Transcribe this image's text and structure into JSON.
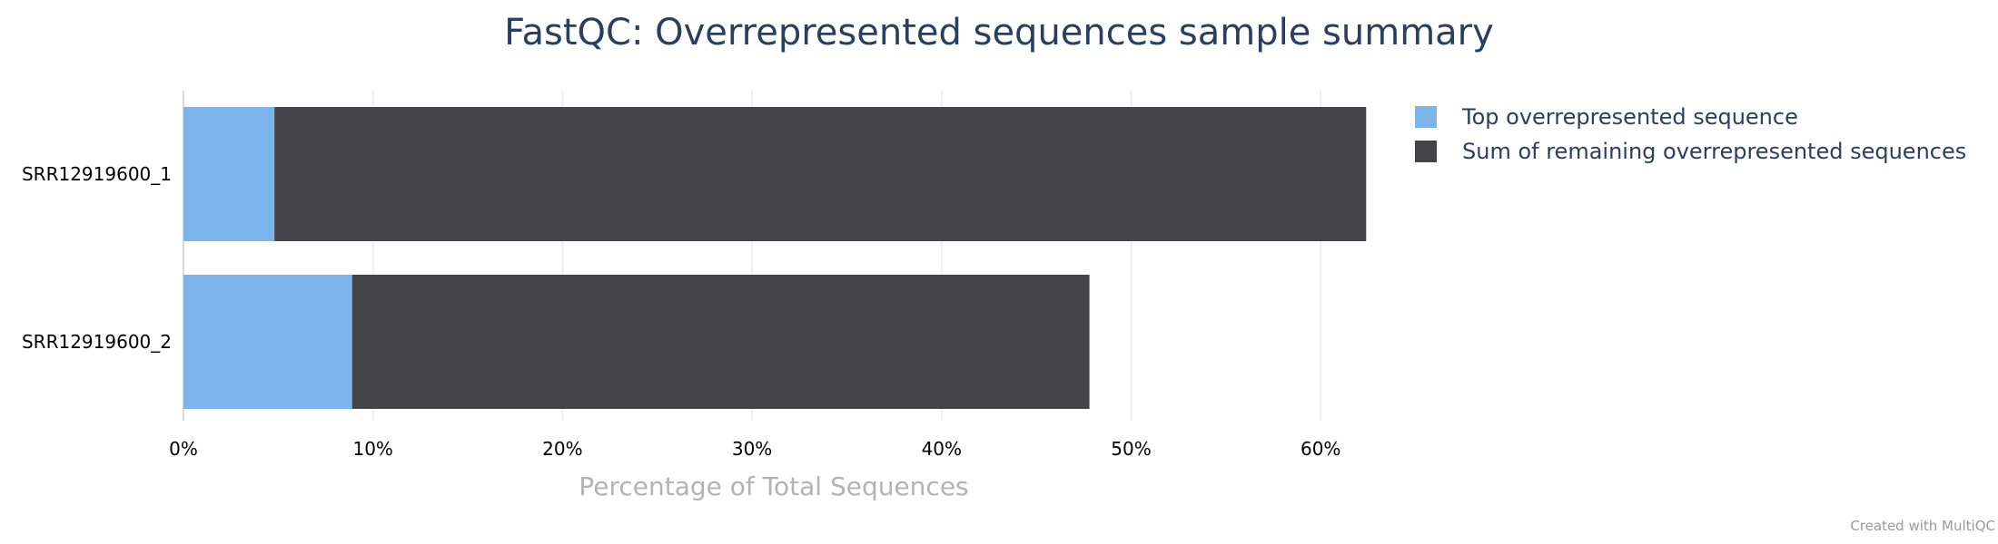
{
  "chart_data": {
    "type": "bar",
    "orientation": "horizontal",
    "stacked": true,
    "title": "FastQC: Overrepresented sequences sample summary",
    "xlabel": "Percentage of Total Sequences",
    "ylabel": "",
    "xlim": [
      0,
      65
    ],
    "x_ticks": [
      "0%",
      "10%",
      "20%",
      "30%",
      "40%",
      "50%",
      "60%"
    ],
    "x_tick_values": [
      0,
      10,
      20,
      30,
      40,
      50,
      60
    ],
    "categories": [
      "SRR12919600_1",
      "SRR12919600_2"
    ],
    "series": [
      {
        "name": "Top overrepresented sequence",
        "color": "#7cb5ec",
        "values": [
          4.8,
          8.9
        ]
      },
      {
        "name": "Sum of remaining overrepresented sequences",
        "color": "#434348",
        "values": [
          57.6,
          38.9
        ]
      }
    ],
    "grid": true,
    "legend_position": "top-right",
    "credit": "Created with MultiQC"
  }
}
